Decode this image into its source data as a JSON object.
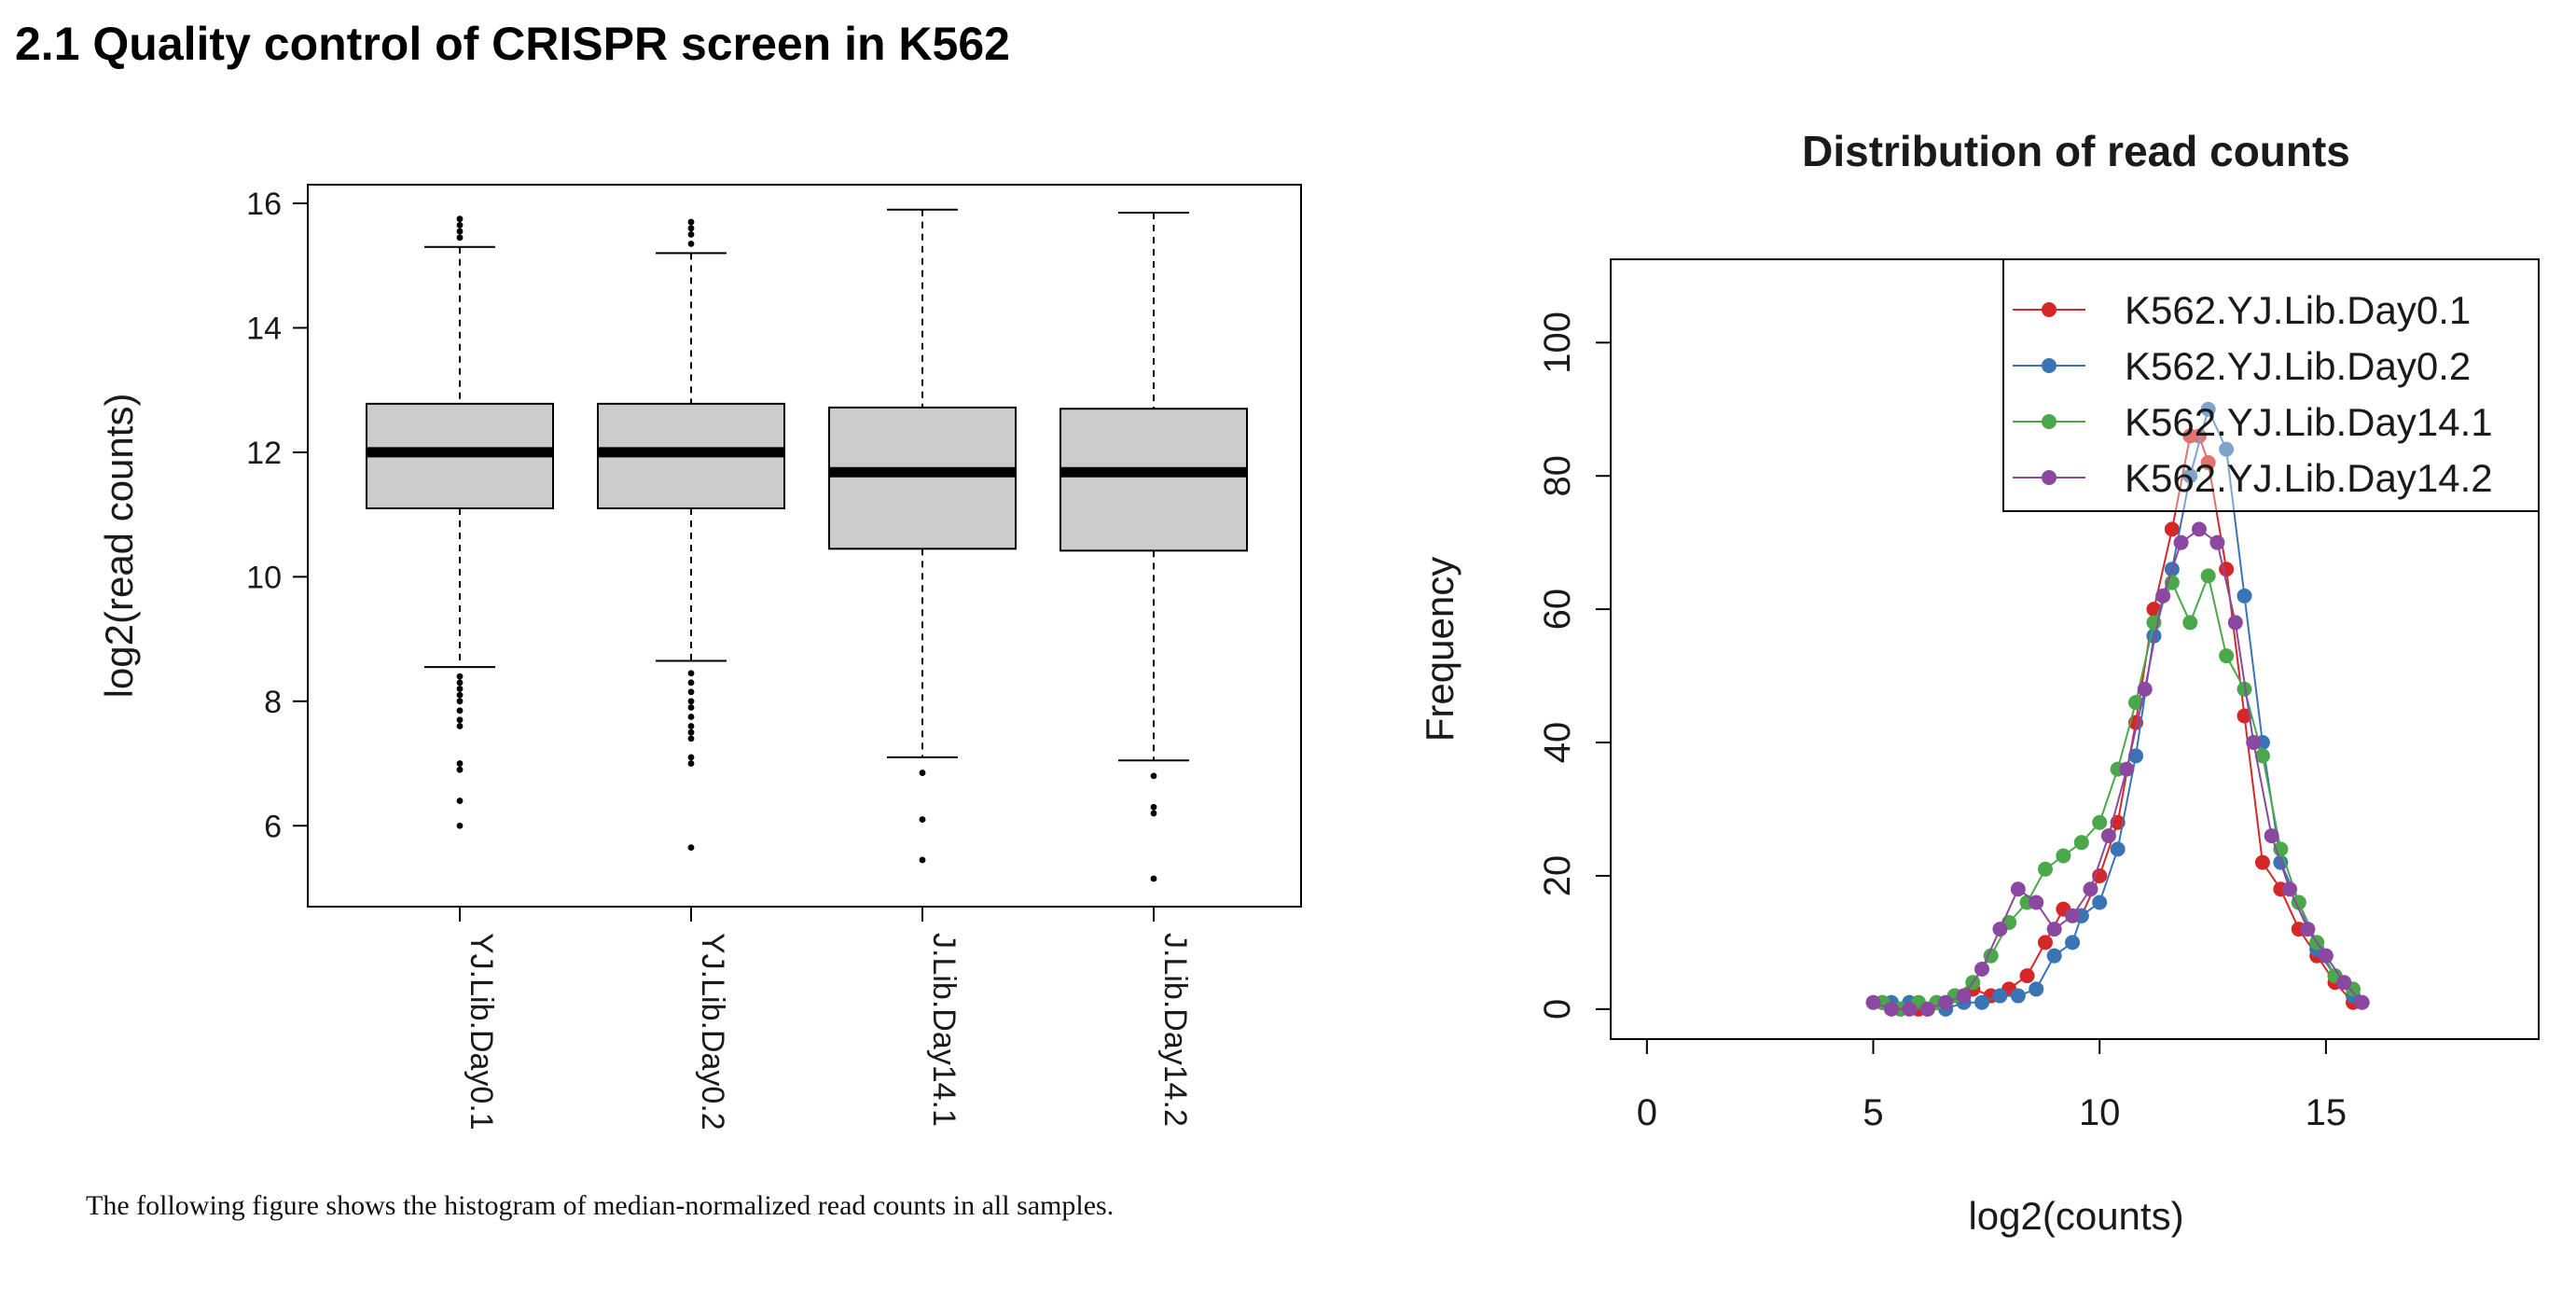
{
  "section_title": "2.1 Quality control of CRISPR screen in K562",
  "caption": "The following figure shows the histogram of median-normalized read counts in all samples.",
  "colors": {
    "box_fill": "#cccccc",
    "series": [
      "#d62728",
      "#3a74b4",
      "#4aa84a",
      "#8b48a0"
    ]
  },
  "chart_data": [
    {
      "type": "box",
      "title": "",
      "xlabel": "",
      "ylabel": "log2(read counts)",
      "categories": [
        "YJ.Lib.Day0.1",
        "YJ.Lib.Day0.2",
        "J.Lib.Day14.1",
        "J.Lib.Day14.2"
      ],
      "yticks": [
        6,
        8,
        10,
        12,
        14,
        16
      ],
      "ylim": [
        4.7,
        16.3
      ],
      "boxes": [
        {
          "whisker_low": 8.55,
          "q1": 11.1,
          "median": 12.0,
          "q3": 12.78,
          "whisker_high": 15.3,
          "outliers": [
            6.0,
            6.4,
            6.9,
            7.0,
            7.6,
            7.7,
            7.85,
            8.0,
            8.1,
            8.2,
            8.3,
            8.4,
            15.45,
            15.55,
            15.65,
            15.75
          ]
        },
        {
          "whisker_low": 8.65,
          "q1": 11.1,
          "median": 12.0,
          "q3": 12.78,
          "whisker_high": 15.2,
          "outliers": [
            5.65,
            7.0,
            7.1,
            7.4,
            7.5,
            7.6,
            7.75,
            7.9,
            8.0,
            8.15,
            8.3,
            8.45,
            15.35,
            15.5,
            15.6,
            15.7
          ]
        },
        {
          "whisker_low": 7.1,
          "q1": 10.45,
          "median": 11.68,
          "q3": 12.72,
          "whisker_high": 15.9,
          "outliers": [
            5.45,
            6.1,
            6.85
          ]
        },
        {
          "whisker_low": 7.05,
          "q1": 10.42,
          "median": 11.68,
          "q3": 12.7,
          "whisker_high": 15.85,
          "outliers": [
            5.15,
            6.2,
            6.3,
            6.8
          ]
        }
      ]
    },
    {
      "type": "line",
      "title": "Distribution of read counts",
      "xlabel": "log2(counts)",
      "ylabel": "Frequency",
      "xticks": [
        0,
        5,
        10,
        15
      ],
      "yticks": [
        0,
        20,
        40,
        60,
        80,
        100
      ],
      "xlim": [
        -0.8,
        19.7
      ],
      "ylim": [
        -4.5,
        112.5
      ],
      "legend": {
        "placement": "top-right"
      },
      "series": [
        {
          "name": "K562.YJ.Lib.Day0.1",
          "x": [
            5.2,
            5.6,
            6.0,
            6.4,
            6.8,
            7.2,
            7.6,
            8.0,
            8.4,
            8.8,
            9.2,
            9.6,
            10.0,
            10.4,
            10.8,
            11.2,
            11.6,
            12.0,
            12.2,
            12.4,
            12.8,
            13.2,
            13.6,
            14.0,
            14.4,
            14.8,
            15.2,
            15.6
          ],
          "y": [
            1,
            0,
            0,
            1,
            2,
            3,
            2,
            3,
            5,
            10,
            15,
            14,
            20,
            28,
            43,
            60,
            72,
            86,
            86,
            82,
            66,
            44,
            22,
            18,
            12,
            8,
            4,
            1
          ]
        },
        {
          "name": "K562.YJ.Lib.Day0.2",
          "x": [
            5.4,
            5.8,
            6.2,
            6.6,
            7.0,
            7.4,
            7.8,
            8.2,
            8.6,
            9.0,
            9.4,
            9.6,
            10.0,
            10.4,
            10.8,
            11.2,
            11.6,
            12.0,
            12.4,
            12.8,
            13.2,
            13.6,
            14.0,
            14.4,
            14.8,
            15.2,
            15.6
          ],
          "y": [
            1,
            1,
            0,
            0,
            1,
            1,
            2,
            2,
            3,
            8,
            10,
            14,
            16,
            24,
            38,
            56,
            66,
            80,
            90,
            84,
            62,
            40,
            22,
            16,
            9,
            5,
            2
          ]
        },
        {
          "name": "K562.YJ.Lib.Day14.1",
          "x": [
            5.2,
            5.6,
            6.0,
            6.4,
            6.8,
            7.2,
            7.6,
            8.0,
            8.4,
            8.8,
            9.2,
            9.6,
            10.0,
            10.4,
            10.8,
            11.2,
            11.6,
            12.0,
            12.4,
            12.8,
            13.2,
            13.6,
            14.0,
            14.4,
            14.8,
            15.2,
            15.6
          ],
          "y": [
            1,
            0,
            1,
            1,
            2,
            4,
            8,
            13,
            16,
            21,
            23,
            25,
            28,
            36,
            46,
            58,
            64,
            58,
            65,
            53,
            48,
            38,
            24,
            16,
            10,
            5,
            3
          ]
        },
        {
          "name": "K562.YJ.Lib.Day14.2",
          "x": [
            5.0,
            5.4,
            5.8,
            6.2,
            6.6,
            7.0,
            7.4,
            7.8,
            8.2,
            8.6,
            9.0,
            9.4,
            9.8,
            10.2,
            10.6,
            11.0,
            11.4,
            11.8,
            12.2,
            12.6,
            13.0,
            13.4,
            13.8,
            14.2,
            14.6,
            15.0,
            15.4,
            15.8
          ],
          "y": [
            1,
            0,
            0,
            0,
            1,
            2,
            6,
            12,
            18,
            16,
            12,
            14,
            18,
            26,
            36,
            48,
            62,
            70,
            72,
            70,
            58,
            40,
            26,
            18,
            12,
            8,
            4,
            1
          ]
        }
      ]
    }
  ]
}
